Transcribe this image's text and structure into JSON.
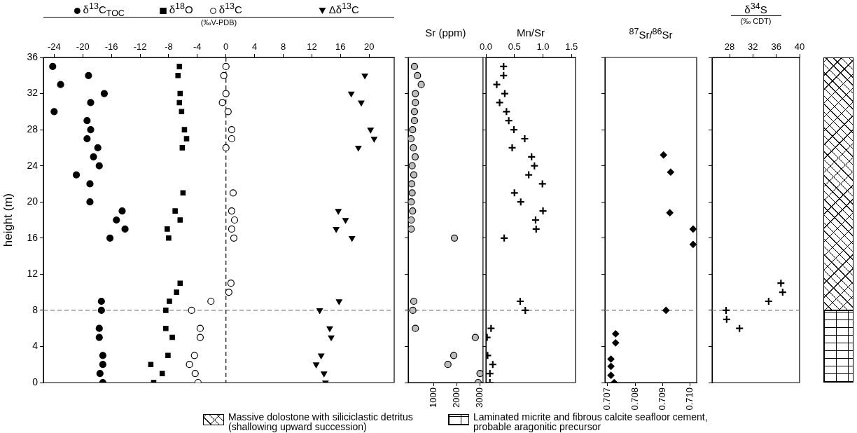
{
  "chart_data": [
    {
      "type": "scatter",
      "xlabel": "(‰V-PDB)",
      "ylabel": "height (m)",
      "xlim": [
        -25.5,
        23.5
      ],
      "xticks": [
        -24,
        -20,
        -16,
        -12,
        -8,
        -4,
        0,
        4,
        8,
        12,
        16,
        20
      ],
      "ylim": [
        0,
        36
      ],
      "yticks": [
        0,
        4,
        8,
        12,
        16,
        20,
        24,
        28,
        32,
        36
      ],
      "grid": false,
      "legend": "top",
      "series": [
        {
          "name": "δ$^{13}$C$_{TOC}$",
          "color": "#000000",
          "marker": "circle",
          "x": [
            -24.2,
            -23.1,
            -24.0,
            -19.2,
            -17.0,
            -18.9,
            -19.4,
            -18.9,
            -19.4,
            -17.9,
            -18.5,
            -17.7,
            -20.9,
            -19.0,
            -19.0,
            -14.5,
            -15.3,
            -14.1,
            -16.2,
            -17.4,
            -17.4,
            -17.7,
            -17.7,
            -17.2,
            -17.2,
            -17.6,
            -17.2
          ],
          "values": [
            35,
            33,
            30,
            34,
            32,
            31,
            29,
            28,
            27,
            26,
            25,
            24,
            23,
            22,
            20,
            19,
            18,
            17,
            16,
            9,
            8,
            6,
            5,
            3,
            2,
            1,
            0
          ]
        },
        {
          "name": "δ$^{18}$O",
          "color": "#000000",
          "marker": "square",
          "x": [
            -6.5,
            -6.7,
            -6.4,
            -6.5,
            -6.2,
            -5.8,
            -5.5,
            -6.1,
            -6.0,
            -7.1,
            -6.4,
            -8.2,
            -8.0,
            -6.4,
            -6.9,
            -7.9,
            -8.4,
            -8.4,
            -7.5,
            -8.1,
            -10.5,
            -8.9,
            -10.1
          ],
          "values": [
            35,
            34,
            32,
            31,
            30,
            28,
            27,
            26,
            21,
            19,
            18,
            17,
            16,
            11,
            10,
            9,
            8,
            6,
            5,
            3,
            2,
            1,
            0
          ]
        },
        {
          "name": "δ$^{13}$C",
          "color": "#000000",
          "marker": "circle",
          "x": [
            0,
            -0.3,
            0,
            -0.5,
            0.3,
            0.8,
            0.8,
            0,
            1.0,
            0.8,
            1.2,
            0.8,
            1.1,
            0.7,
            0.4,
            -2.1,
            -4.8,
            -3.6,
            -3.6,
            -4.4,
            -5.1,
            -4.3,
            -3.9
          ],
          "values": [
            35,
            34,
            32,
            31,
            30,
            28,
            27,
            26,
            21,
            19,
            18,
            17,
            16,
            11,
            10,
            9,
            8,
            6,
            5,
            3,
            2,
            1,
            0
          ]
        },
        {
          "name": "Δδ$^{13}$C",
          "color": "#000000",
          "marker": "triangle",
          "x": [
            19.4,
            17.5,
            18.9,
            20.2,
            20.7,
            18.5,
            15.7,
            16.7,
            15.4,
            17.6,
            15.8,
            13.1,
            14.5,
            14.7,
            13.3,
            12.6,
            13.7,
            13.9
          ],
          "values": [
            34,
            32,
            31,
            28,
            27,
            26,
            19,
            18,
            17,
            16,
            9,
            8,
            6,
            5,
            3,
            2,
            1,
            0
          ]
        }
      ],
      "ref_lines": [
        {
          "axis": "y",
          "value": 8,
          "color": "#808080",
          "line_style": "dashed"
        },
        {
          "axis": "x",
          "value": 0,
          "color": "#000000",
          "line_style": "dashed"
        }
      ],
      "annotations": [
        "Massive dolostone with siliciclastic detritus (shallowing upward succession)",
        "Laminated micrite and fibrous calcite seafloor cement, probable aragonitic precursor"
      ]
    },
    {
      "type": "scatter",
      "title": "Sr (ppm)",
      "xlim": [
        -100,
        3120
      ],
      "xticks": [
        1000,
        2000,
        3000
      ],
      "ylim": [
        0,
        36
      ],
      "yticks": [
        0,
        4,
        8,
        12,
        16,
        20,
        24,
        28,
        32,
        36
      ],
      "tick_labels": "x",
      "grid": false,
      "legend": false,
      "series": [
        {
          "color": "#bdbdbd",
          "marker": "circle",
          "x": [
            170,
            300,
            460,
            210,
            210,
            170,
            170,
            90,
            20,
            120,
            200,
            70,
            140,
            50,
            70,
            30,
            90,
            30,
            30,
            1890,
            140,
            100,
            210,
            2790,
            1860,
            1610,
            2990,
            2910
          ],
          "values": [
            35,
            34,
            33,
            32,
            31,
            30,
            29,
            28,
            27,
            26,
            25,
            24,
            23,
            22,
            21,
            20,
            19,
            18,
            17,
            16,
            9,
            8,
            6,
            5,
            3,
            2,
            1,
            0
          ]
        }
      ],
      "ref_lines": [
        {
          "axis": "y",
          "value": 8,
          "color": "#808080",
          "line_style": "dashed"
        }
      ]
    },
    {
      "type": "scatter",
      "title": "Mn/Sr",
      "xlim": [
        0,
        1.57
      ],
      "xticks": [
        {
          "value": 0,
          "label": "0.0"
        },
        0.5,
        {
          "value": 1,
          "label": "1.0"
        },
        1.5
      ],
      "ylim": [
        0,
        36
      ],
      "yticks": [
        0,
        4,
        8,
        12,
        16,
        20,
        24,
        28,
        32,
        36
      ],
      "tick_labels": "x",
      "grid": false,
      "legend": false,
      "series": [
        {
          "color": "#000000",
          "marker": "cross",
          "x": [
            0.31,
            0.31,
            0.19,
            0.33,
            0.24,
            0.36,
            0.4,
            0.49,
            0.68,
            0.46,
            0.8,
            0.85,
            0.75,
            0.99,
            0.5,
            0.61,
            1.0,
            0.87,
            0.88,
            0.32,
            0.6,
            0.69,
            0.09,
            0.02,
            0.03,
            0.12,
            0.07,
            0.07
          ],
          "values": [
            35,
            34,
            33,
            32,
            31,
            30,
            29,
            28,
            27,
            26,
            25,
            24,
            23,
            22,
            21,
            20,
            19,
            18,
            17,
            16,
            9,
            8,
            6,
            5,
            3,
            2,
            1,
            0
          ]
        }
      ],
      "ref_lines": [
        {
          "axis": "y",
          "value": 8,
          "color": "#808080",
          "line_style": "dashed"
        }
      ]
    },
    {
      "type": "scatter",
      "title": "$^{87}$Sr/$^{86}$Sr",
      "xlim": [
        0.7069,
        0.71025
      ],
      "xticks": [
        0.707,
        0.708,
        0.709,
        {
          "value": 0.71,
          "label": "0.710"
        }
      ],
      "ylim": [
        0,
        36
      ],
      "yticks": [
        0,
        4,
        8,
        12,
        16,
        20,
        24,
        28,
        32,
        36
      ],
      "tick_labels": "x",
      "grid": false,
      "legend": false,
      "series": [
        {
          "color": "#000000",
          "marker": "diamond",
          "x": [
            0.70904,
            0.7093,
            0.70927,
            0.71012,
            0.71012,
            0.70913,
            0.70729,
            0.70729,
            0.70712,
            0.70712,
            0.70712,
            0.70724
          ],
          "values": [
            25.2,
            23.3,
            18.8,
            17,
            15.3,
            8,
            5.4,
            4.4,
            2.6,
            1.8,
            0.8,
            0
          ]
        }
      ],
      "ref_lines": [
        {
          "axis": "y",
          "value": 8,
          "color": "#808080",
          "line_style": "dashed"
        }
      ]
    },
    {
      "type": "scatter",
      "title": "δ$^{34}$S",
      "xlabel": "(‰ CDT)",
      "xlim": [
        25,
        40
      ],
      "xticks": [
        28,
        32,
        36,
        40
      ],
      "ylim": [
        0,
        36
      ],
      "yticks": [
        0,
        4,
        8,
        12,
        16,
        20,
        24,
        28,
        32,
        36
      ],
      "tick_labels": "x",
      "grid": false,
      "legend": false,
      "series": [
        {
          "color": "#000000",
          "marker": "cross",
          "x": [
            27.4,
            27.5,
            29.7,
            34.7,
            37.1,
            36.8
          ],
          "values": [
            8,
            7,
            6,
            9,
            10,
            11
          ]
        }
      ],
      "ref_lines": [
        {
          "axis": "y",
          "value": 8,
          "color": "#808080",
          "line_style": "dashed"
        }
      ]
    }
  ]
}
